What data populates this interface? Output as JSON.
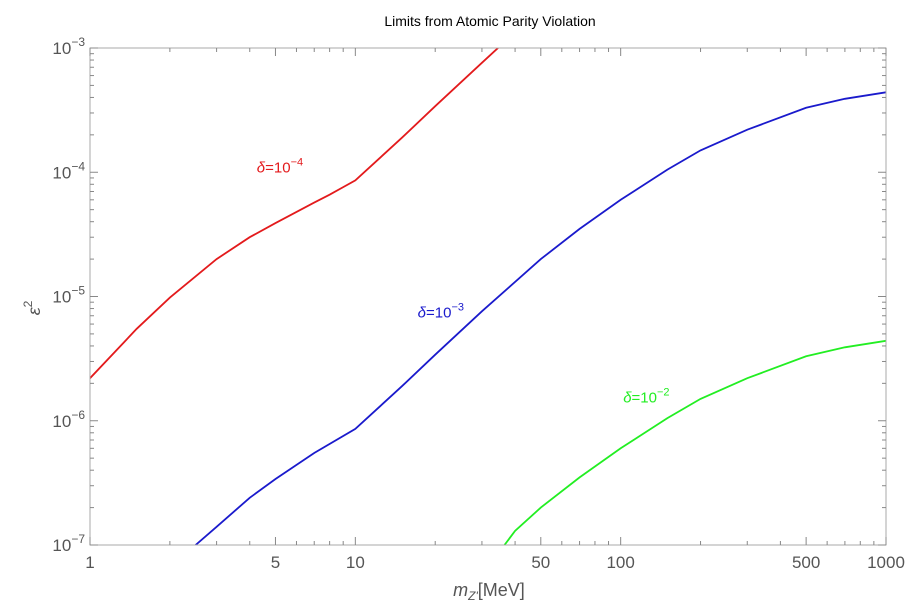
{
  "chart_data": {
    "type": "line",
    "title": "Limits from Atomic Parity Violation",
    "xlabel": {
      "main": "m",
      "sub": "Z'",
      "unit": "[MeV]"
    },
    "ylabel": {
      "base": "ε",
      "sup": "2"
    },
    "xscale": "log",
    "yscale": "log",
    "xlim": [
      1,
      1000
    ],
    "ylim": [
      1e-07,
      0.001
    ],
    "grid": false,
    "x_ticks": [
      {
        "value": 1,
        "label": "1"
      },
      {
        "value": 5,
        "label": "5"
      },
      {
        "value": 10,
        "label": "10"
      },
      {
        "value": 50,
        "label": "50"
      },
      {
        "value": 100,
        "label": "100"
      },
      {
        "value": 500,
        "label": "500"
      },
      {
        "value": 1000,
        "label": "1000"
      }
    ],
    "y_ticks": [
      {
        "value": 1e-07,
        "base": "10",
        "exp": "−7"
      },
      {
        "value": 1e-06,
        "base": "10",
        "exp": "−6"
      },
      {
        "value": 1e-05,
        "base": "10",
        "exp": "−5"
      },
      {
        "value": 0.0001,
        "base": "10",
        "exp": "−4"
      },
      {
        "value": 0.001,
        "base": "10",
        "exp": "−3"
      }
    ],
    "series": [
      {
        "color": "#e31a1c",
        "label": {
          "prefix": "δ=10",
          "exp": "−4",
          "x": 5.2,
          "y": 0.0001
        },
        "x": [
          1,
          1.5,
          2,
          3,
          4,
          5,
          6,
          7,
          8,
          9,
          10,
          15,
          20,
          25,
          30,
          35,
          40
        ],
        "y": [
          2.2e-06,
          5.5e-06,
          9.8e-06,
          2e-05,
          3e-05,
          3.9e-05,
          4.8e-05,
          5.7e-05,
          6.6e-05,
          7.6e-05,
          8.6e-05,
          0.00019,
          0.00034,
          0.00053,
          0.00076,
          0.00103,
          0.00135
        ]
      },
      {
        "color": "#1a1acc",
        "label": {
          "prefix": "δ=10",
          "exp": "−3",
          "x": 21,
          "y": 6.8e-06
        },
        "x": [
          2.5,
          3,
          4,
          5,
          7,
          10,
          15,
          20,
          30,
          50,
          70,
          100,
          150,
          200,
          300,
          500,
          700,
          1000
        ],
        "y": [
          1e-07,
          1.4e-07,
          2.4e-07,
          3.4e-07,
          5.5e-07,
          8.6e-07,
          1.9e-06,
          3.4e-06,
          7.6e-06,
          2e-05,
          3.5e-05,
          6e-05,
          0.000105,
          0.00015,
          0.00022,
          0.00033,
          0.00039,
          0.00044
        ]
      },
      {
        "color": "#22ee22",
        "label": {
          "prefix": "δ=10",
          "exp": "−2",
          "x": 125,
          "y": 1.4e-06
        },
        "x": [
          36.5,
          40,
          50,
          70,
          100,
          150,
          200,
          300,
          500,
          700,
          1000
        ],
        "y": [
          1e-07,
          1.3e-07,
          2e-07,
          3.5e-07,
          6e-07,
          1.05e-06,
          1.5e-06,
          2.2e-06,
          3.3e-06,
          3.9e-06,
          4.4e-06
        ]
      }
    ]
  }
}
